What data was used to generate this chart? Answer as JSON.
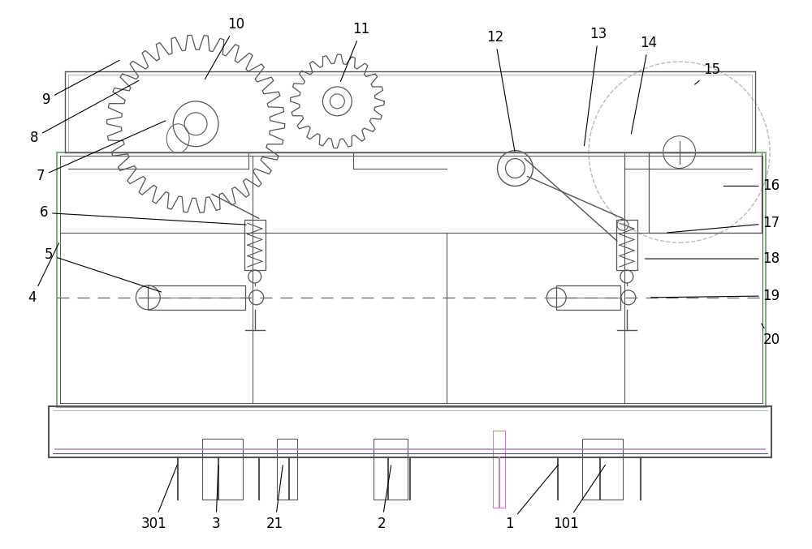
{
  "fig_width": 10.0,
  "fig_height": 6.77,
  "bg_color": "#ffffff",
  "lc": "#555555",
  "llc": "#999999",
  "gc": "#88aa88",
  "pc": "#bb88bb",
  "dc": "#aaaaaa",
  "label_fontsize": 12
}
